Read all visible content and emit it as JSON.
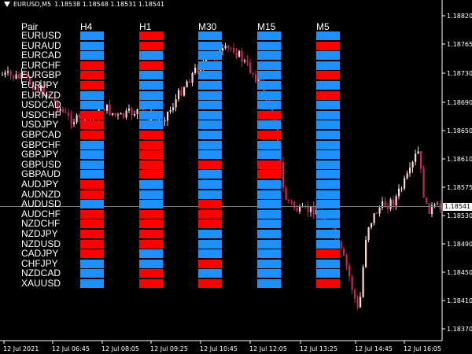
{
  "header": {
    "symbol": "EURUSD,M5",
    "quotes": "1.18538 1.18548 1.18531 1.18541"
  },
  "price_axis": {
    "ticks": [
      "1.18820",
      "1.18765",
      "1.18730",
      "1.18690",
      "1.18650",
      "1.18610",
      "1.18575",
      "1.18530",
      "1.18490",
      "1.18450",
      "1.18410",
      "1.18370"
    ],
    "current": "1.18541"
  },
  "time_axis": {
    "ticks": [
      "12 Jul 2021",
      "12 Jul 06:45",
      "12 Jul 08:05",
      "12 Jul 09:25",
      "12 Jul 10:45",
      "12 Jul 12:05",
      "12 Jul 13:25",
      "12 Jul 14:45",
      "12 Jul 16:05"
    ]
  },
  "colors": {
    "up": "#1e90ff",
    "down": "#ff0000",
    "bull_candle": "#ffd5d5",
    "bear_candle": "#c8265a"
  },
  "panel": {
    "pair_header": "Pair",
    "timeframes": [
      "H4",
      "H1",
      "M30",
      "M15",
      "M5"
    ],
    "pairs": [
      "EURUSD",
      "EURAUD",
      "EURCAD",
      "EURCHF",
      "EURGBP",
      "EURJPY",
      "EURNZD",
      "USDCAD",
      "USDCHF",
      "USDJPY",
      "GBPCAD",
      "GBPCHF",
      "GBPJPY",
      "GBPUSD",
      "GBPAUD",
      "AUDJPY",
      "AUDNZD",
      "AUDUSD",
      "AUDCHF",
      "NZDCHF",
      "NZDJPY",
      "NZDUSD",
      "CADJPY",
      "CHFJPY",
      "NZDCAD",
      "XAUUSD"
    ],
    "signals": [
      [
        "up",
        "down",
        "up",
        "up",
        "up"
      ],
      [
        "up",
        "down",
        "up",
        "up",
        "down"
      ],
      [
        "up",
        "up",
        "up",
        "up",
        "up"
      ],
      [
        "down",
        "down",
        "up",
        "up",
        "up"
      ],
      [
        "down",
        "up",
        "up",
        "up",
        "down"
      ],
      [
        "down",
        "up",
        "up",
        "up",
        "up"
      ],
      [
        "up",
        "up",
        "up",
        "up",
        "down"
      ],
      [
        "up",
        "up",
        "up",
        "up",
        "up"
      ],
      [
        "down",
        "up",
        "up",
        "down",
        "up"
      ],
      [
        "down",
        "up",
        "up",
        "up",
        "up"
      ],
      [
        "down",
        "down",
        "up",
        "down",
        "up"
      ],
      [
        "up",
        "down",
        "up",
        "up",
        "up"
      ],
      [
        "up",
        "down",
        "up",
        "up",
        "up"
      ],
      [
        "up",
        "down",
        "down",
        "down",
        "up"
      ],
      [
        "up",
        "down",
        "up",
        "down",
        "up"
      ],
      [
        "down",
        "up",
        "up",
        "up",
        "up"
      ],
      [
        "down",
        "up",
        "up",
        "up",
        "up"
      ],
      [
        "up",
        "up",
        "down",
        "up",
        "up"
      ],
      [
        "down",
        "down",
        "down",
        "up",
        "up"
      ],
      [
        "down",
        "down",
        "down",
        "up",
        "up"
      ],
      [
        "down",
        "down",
        "up",
        "up",
        "up"
      ],
      [
        "down",
        "down",
        "up",
        "up",
        "up"
      ],
      [
        "down",
        "up",
        "up",
        "up",
        "down"
      ],
      [
        "up",
        "up",
        "down",
        "up",
        "up"
      ],
      [
        "up",
        "down",
        "up",
        "up",
        "up"
      ],
      [
        "up",
        "down",
        "down",
        "up",
        "down"
      ]
    ]
  }
}
